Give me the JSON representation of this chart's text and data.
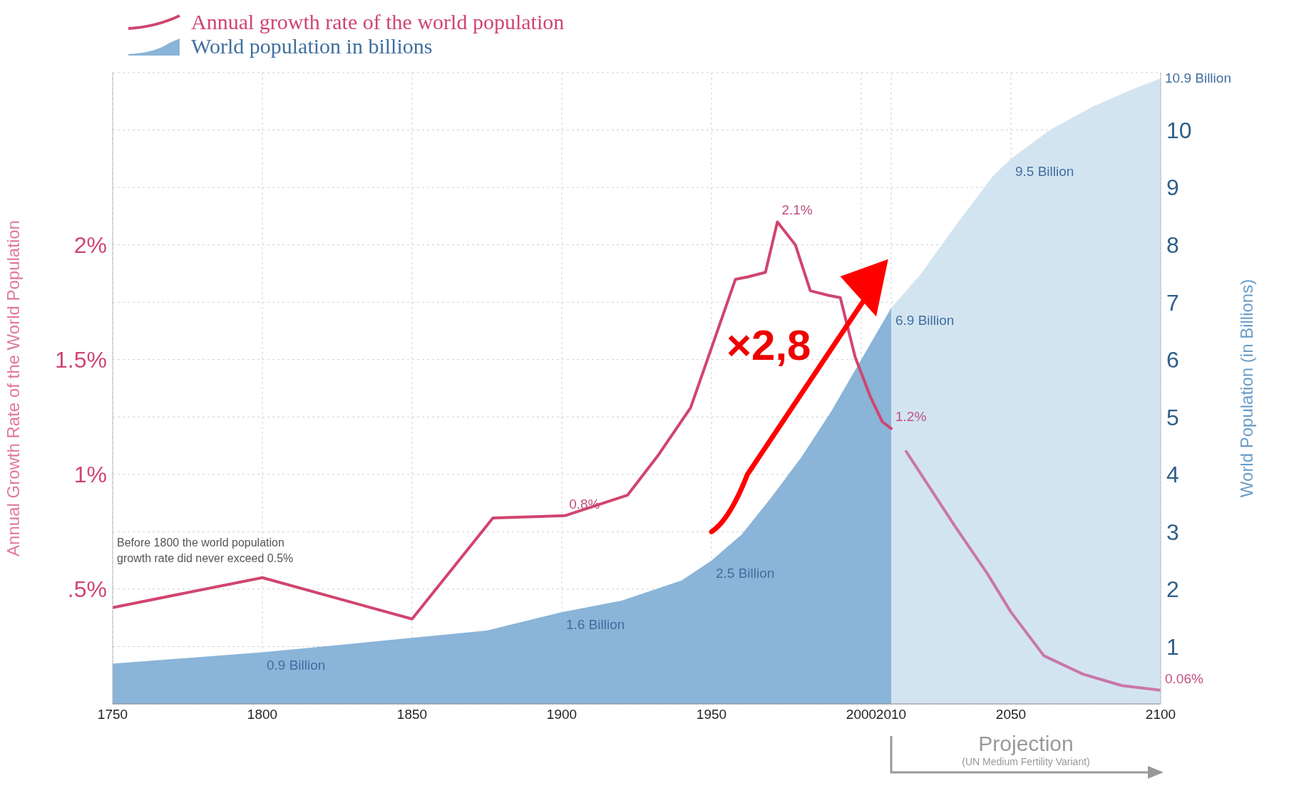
{
  "chart_data": {
    "type": "line",
    "xlabel": null,
    "ylabel": "Annual Growth Rate of the World Population",
    "y2label": "World Population (in Billions)",
    "xlim": [
      1750,
      2100
    ],
    "xticks": [
      1750,
      1800,
      1850,
      1900,
      1950,
      2000,
      2010,
      2050,
      2100
    ],
    "ylim": [
      0,
      2.75
    ],
    "yticks": [
      {
        "value": 0.5,
        "label": ".5%"
      },
      {
        "value": 1,
        "label": "1%"
      },
      {
        "value": 1.5,
        "label": "1.5%"
      },
      {
        "value": 2,
        "label": "2%"
      }
    ],
    "y2lim": [
      0,
      11
    ],
    "y2ticks": [
      1,
      2,
      3,
      4,
      5,
      6,
      7,
      8,
      9,
      10
    ],
    "grid": true,
    "legend": "top left",
    "marker": "none",
    "line_style": "solid",
    "series": [
      {
        "name": "Annual growth rate of the world population",
        "color": "#d0456f",
        "x": [
          1750,
          1800,
          1850,
          1877,
          1901,
          1922,
          1932,
          1943,
          1958,
          1962,
          1968,
          1972,
          1978,
          1983,
          1989,
          1993,
          1998,
          2003,
          2007,
          2010
        ],
        "values": [
          0.42,
          0.55,
          0.37,
          0.81,
          0.82,
          0.91,
          1.08,
          1.29,
          1.85,
          1.86,
          1.88,
          2.1,
          2.0,
          1.8,
          1.78,
          1.77,
          1.51,
          1.34,
          1.23,
          1.2
        ],
        "value_labels": [
          null,
          null,
          null,
          null,
          "0.8%",
          null,
          null,
          null,
          null,
          null,
          null,
          "2.1%",
          null,
          null,
          null,
          null,
          null,
          null,
          null,
          "1.2%"
        ]
      },
      {
        "color": "#c877a8",
        "x": [
          2015,
          2031,
          2042,
          2050,
          2061,
          2074,
          2087,
          2100
        ],
        "values": [
          1.1,
          0.78,
          0.57,
          0.4,
          0.21,
          0.13,
          0.08,
          0.06
        ],
        "value_labels": [
          null,
          null,
          null,
          null,
          null,
          null,
          null,
          "0.06%"
        ]
      },
      {
        "name": "World population in billions",
        "type": "area",
        "axis": "y2",
        "color": "#8ab4d8",
        "x": [
          1750,
          1800,
          1850,
          1875,
          1900,
          1920,
          1940,
          1950,
          1960,
          1970,
          1980,
          1990,
          2000,
          2010
        ],
        "values": [
          0.7,
          0.9,
          1.15,
          1.28,
          1.6,
          1.8,
          2.15,
          2.5,
          2.95,
          3.6,
          4.3,
          5.1,
          6.0,
          6.9
        ],
        "value_labels": [
          null,
          "0.9 Billion",
          null,
          null,
          "1.6 Billion",
          null,
          null,
          "2.5 Billion",
          null,
          null,
          null,
          null,
          null,
          "6.9 Billion"
        ]
      },
      {
        "type": "area",
        "axis": "y2",
        "color": "#d3e4f1",
        "x": [
          2010,
          2020,
          2031,
          2044,
          2050,
          2063,
          2077,
          2090,
          2100
        ],
        "values": [
          6.9,
          7.5,
          8.3,
          9.2,
          9.5,
          10.0,
          10.4,
          10.7,
          10.9
        ],
        "value_labels": [
          null,
          null,
          null,
          null,
          "9.5 Billion",
          null,
          null,
          null,
          "10.9 Billion"
        ]
      }
    ],
    "annotations": [
      "Before 1800 the world population growth rate did never exceed 0.5%",
      "×2,8",
      "Projection",
      "(UN Medium Fertility Variant)"
    ]
  }
}
